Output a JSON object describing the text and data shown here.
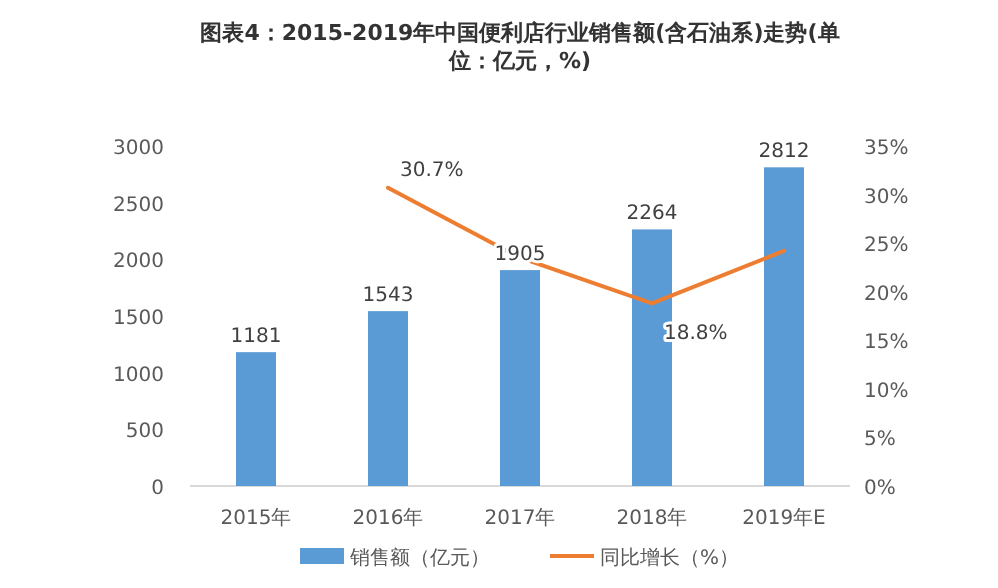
{
  "chart_data": {
    "type": "bar",
    "title": "图表4：2015-2019年中国便利店行业销售额(含石油系)走势(单位：亿元，%)",
    "categories": [
      "2015年",
      "2016年",
      "2017年",
      "2018年",
      "2019年E"
    ],
    "series": [
      {
        "name": "销售额（亿元）",
        "color": "#5b9bd5",
        "values": [
          1181,
          1543,
          1905,
          2264,
          2812
        ],
        "value_labels": [
          "1181",
          "1543",
          "1905",
          "2264",
          "2812"
        ]
      },
      {
        "name": "同比增长（%）",
        "type": "line",
        "axis": "y2",
        "color": "#ed7d31",
        "values": [
          null,
          30.7,
          23.5,
          18.8,
          24.2
        ],
        "value_labels": [
          null,
          "30.7%",
          null,
          "18.8%",
          null
        ]
      }
    ],
    "ylim": [
      0,
      3000
    ],
    "yticks": [
      0,
      500,
      1000,
      1500,
      2000,
      2500,
      3000
    ],
    "y2lim": [
      0,
      35
    ],
    "y2ticks": [
      {
        "value": 0,
        "label": "0%"
      },
      {
        "value": 5,
        "label": "5%"
      },
      {
        "value": 10,
        "label": "10%"
      },
      {
        "value": 15,
        "label": "15%"
      },
      {
        "value": 20,
        "label": "20%"
      },
      {
        "value": 25,
        "label": "25%"
      },
      {
        "value": 30,
        "label": "30%"
      },
      {
        "value": 35,
        "label": "35%"
      }
    ],
    "legend": "bottom"
  }
}
